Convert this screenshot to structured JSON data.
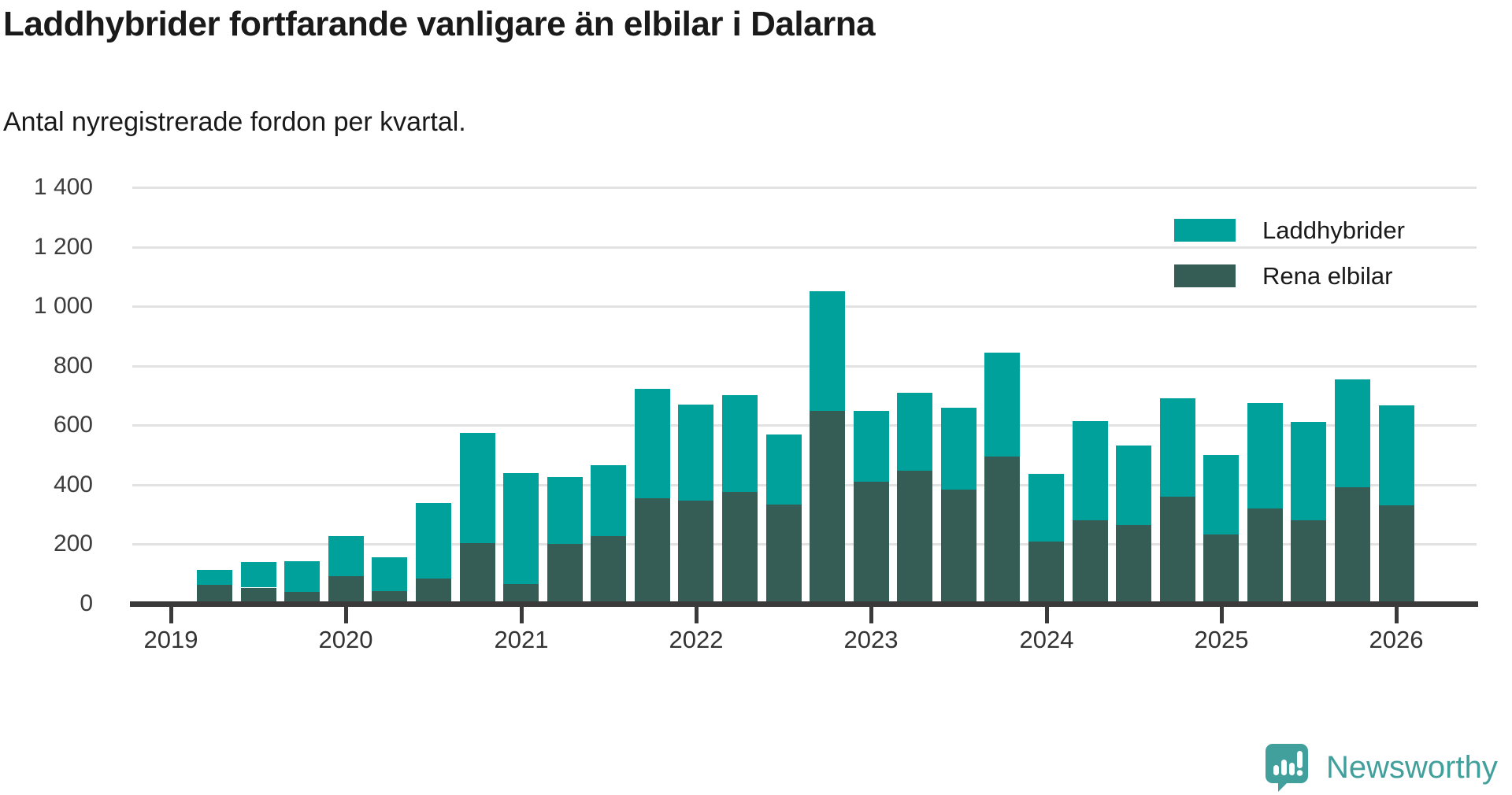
{
  "title": "Laddhybrider fortfarande vanligare än elbilar i Dalarna",
  "subtitle": "Antal nyregistrerade fordon per kvartal.",
  "legend": {
    "items": [
      {
        "label": "Laddhybrider",
        "color": "#00a19b"
      },
      {
        "label": "Rena elbilar",
        "color": "#365c56"
      }
    ]
  },
  "chart_data": {
    "type": "bar",
    "stacked": true,
    "title": "Laddhybrider fortfarande vanligare än elbilar i Dalarna",
    "subtitle": "Antal nyregistrerade fordon per kvartal.",
    "xlabel": "",
    "ylabel": "Antal nyregistrerade fordon per kvartal",
    "ylim": [
      0,
      1400
    ],
    "grid": true,
    "legend_position": "top-right",
    "y_tick_labels": [
      "0",
      "200",
      "400",
      "600",
      "800",
      "1 000",
      "1 200",
      "1 400"
    ],
    "y_tick_values": [
      0,
      200,
      400,
      600,
      800,
      1000,
      1200,
      1400
    ],
    "x_tick_labels": [
      "2019",
      "2020",
      "2021",
      "2022",
      "2023",
      "2024",
      "2025",
      "2026"
    ],
    "categories": [
      "2019 Q2",
      "2019 Q3",
      "2019 Q4",
      "2020 Q1",
      "2020 Q2",
      "2020 Q3",
      "2020 Q4",
      "2021 Q1",
      "2021 Q2",
      "2021 Q3",
      "2021 Q4",
      "2022 Q1",
      "2022 Q2",
      "2022 Q3",
      "2022 Q4",
      "2023 Q1",
      "2023 Q2",
      "2023 Q3",
      "2023 Q4",
      "2024 Q1",
      "2024 Q2",
      "2024 Q3",
      "2024 Q4",
      "2025 Q1",
      "2025 Q2",
      "2025 Q3",
      "2025 Q4",
      "2026 Q1"
    ],
    "series": [
      {
        "name": "Rena elbilar",
        "color": "#365c56",
        "values": [
          63,
          54,
          40,
          93,
          42,
          86,
          205,
          66,
          200,
          228,
          354,
          348,
          375,
          333,
          649,
          410,
          447,
          383,
          494,
          209,
          280,
          265,
          360,
          233,
          321,
          280,
          391,
          331
        ]
      },
      {
        "name": "Laddhybrider",
        "color": "#00a19b",
        "values": [
          52,
          85,
          102,
          135,
          115,
          253,
          370,
          374,
          225,
          239,
          368,
          322,
          326,
          237,
          403,
          238,
          262,
          276,
          351,
          227,
          333,
          266,
          330,
          266,
          354,
          331,
          362,
          335
        ]
      }
    ],
    "totals": [
      115,
      139,
      142,
      228,
      157,
      339,
      575,
      440,
      425,
      467,
      722,
      670,
      701,
      570,
      1052,
      648,
      709,
      659,
      845,
      436,
      613,
      531,
      690,
      499,
      675,
      611,
      753,
      666
    ]
  },
  "branding": {
    "logo_text": "Newsworthy",
    "logo_icon": "newsworthy-speech-bubble-chart-icon",
    "logo_color": "#41a09b"
  },
  "theme": {
    "background": "#ffffff",
    "axis_color": "#3a3a3a",
    "gridline_color": "#e2e2e2",
    "text_color": "#1a1a1a",
    "tick_label_color": "#3c3c3c"
  }
}
